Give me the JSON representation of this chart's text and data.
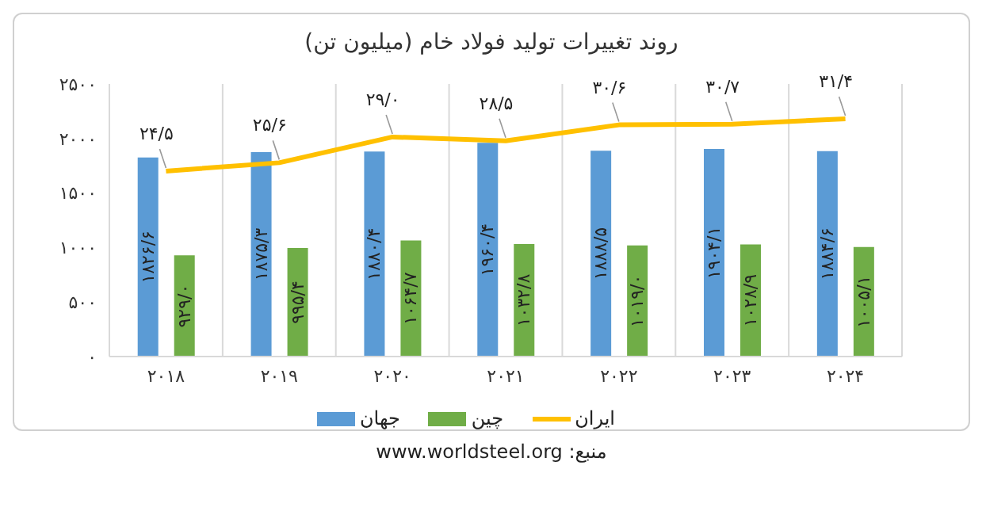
{
  "chart_data": {
    "type": "bar",
    "title": "روند تغییرات تولید فولاد خام (میلیون تن)",
    "categories": [
      "۲۰۱۸",
      "۲۰۱۹",
      "۲۰۲۰",
      "۲۰۲۱",
      "۲۰۲۲",
      "۲۰۲۳",
      "۲۰۲۴"
    ],
    "series": [
      {
        "name": "جهان",
        "color": "#5b9bd5",
        "values": [
          1826.6,
          1875.3,
          1880.4,
          1960.4,
          1888.5,
          1904.1,
          1884.6
        ],
        "value_labels": [
          "۱۸۲۶/۶",
          "۱۸۷۵/۳",
          "۱۸۸۰/۴",
          "۱۹۶۰/۴",
          "۱۸۸۸/۵",
          "۱۹۰۴/۱",
          "۱۸۸۴/۶"
        ]
      },
      {
        "name": "چین",
        "color": "#70ad47",
        "values": [
          929.0,
          995.4,
          1064.7,
          1032.8,
          1019.0,
          1028.9,
          1005.1
        ],
        "value_labels": [
          "۹۲۹/۰",
          "۹۹۵/۴",
          "۱۰۶۴/۷",
          "۱۰۳۲/۸",
          "۱۰۱۹/۰",
          "۱۰۲۸/۹",
          "۱۰۰۵/۱"
        ]
      },
      {
        "name": "ایران",
        "type": "line",
        "axis": "y2",
        "color": "#ffc000",
        "values": [
          24.5,
          25.6,
          29.0,
          28.5,
          30.6,
          30.7,
          31.4
        ],
        "value_labels": [
          "۲۴/۵",
          "۲۵/۶",
          "۲۹/۰",
          "۲۸/۵",
          "۳۰/۶",
          "۳۰/۷",
          "۳۱/۴"
        ]
      }
    ],
    "ylim": [
      0,
      2500
    ],
    "yticks": [
      {
        "value": 0,
        "label": "۰"
      },
      {
        "value": 500,
        "label": "۵۰۰"
      },
      {
        "value": 1000,
        "label": "۱۰۰۰"
      },
      {
        "value": 1500,
        "label": "۱۵۰۰"
      },
      {
        "value": 2000,
        "label": "۲۰۰۰"
      },
      {
        "value": 2500,
        "label": "۲۵۰۰"
      }
    ],
    "y2lim": [
      0,
      36
    ],
    "tick_labels": "xy",
    "grid": "x",
    "legend": "bottom",
    "marker": "none",
    "annotations": [
      "منبع: www.worldsteel.org"
    ]
  }
}
